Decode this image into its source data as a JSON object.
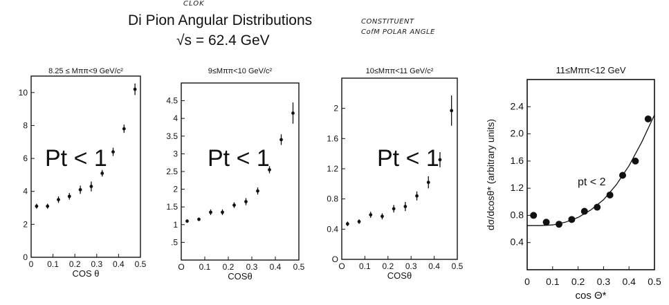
{
  "header": {
    "title": "Di Pion Angular Distributions",
    "energy": "√s = 62.4 GeV",
    "handwritten_top": "CLOK",
    "handwritten_right_line1": "CONSTITUENT",
    "handwritten_right_line2": "CofM POLAR ANGLE"
  },
  "chart_data": [
    {
      "type": "scatter",
      "title": "8.25 ≤ Mππ<9 GeV/c²",
      "annotation": "Pt < 1",
      "xlabel": "COS θ",
      "ylabel": "",
      "xlim": [
        0,
        0.5
      ],
      "ylim": [
        0,
        11
      ],
      "xticks": [
        0,
        0.1,
        0.2,
        0.3,
        0.4,
        0.5
      ],
      "xtick_labels": [
        "0",
        "0.1",
        "0.2",
        "0.3",
        "0.4",
        "0.5"
      ],
      "yticks": [
        0,
        2,
        4,
        6,
        8,
        10
      ],
      "ytick_labels": [
        "0",
        "2",
        "4",
        "6",
        "8",
        "10"
      ],
      "series": [
        {
          "x": [
            0.025,
            0.075,
            0.125,
            0.175,
            0.225,
            0.275,
            0.325,
            0.375,
            0.425,
            0.475
          ],
          "y": [
            3.1,
            3.1,
            3.5,
            3.7,
            4.1,
            4.3,
            5.1,
            6.4,
            7.8,
            10.2
          ],
          "yerr": [
            0.15,
            0.15,
            0.2,
            0.2,
            0.25,
            0.3,
            0.2,
            0.25,
            0.25,
            0.35
          ]
        }
      ]
    },
    {
      "type": "scatter",
      "title": "9≤Mππ<10 GeV/c²",
      "annotation": "Pt < 1",
      "xlabel": "COSθ",
      "ylabel": "",
      "xlim": [
        0,
        0.5
      ],
      "ylim": [
        0,
        5
      ],
      "xticks": [
        0,
        0.1,
        0.2,
        0.3,
        0.4,
        0.5
      ],
      "xtick_labels": [
        "O",
        "0.1",
        "0.2",
        "0.3",
        "0.4",
        "0.5"
      ],
      "yticks": [
        0.5,
        1,
        1.5,
        2,
        2.5,
        3,
        3.5,
        4,
        4.5
      ],
      "ytick_labels": [
        ".5",
        "1",
        "1.5",
        "2",
        "2.5",
        "3",
        "3.5",
        "4",
        "4.5"
      ],
      "series": [
        {
          "x": [
            0.025,
            0.075,
            0.125,
            0.175,
            0.225,
            0.275,
            0.325,
            0.375,
            0.425,
            0.475
          ],
          "y": [
            1.1,
            1.15,
            1.35,
            1.35,
            1.55,
            1.65,
            1.95,
            2.55,
            3.4,
            4.15
          ],
          "yerr": [
            0.05,
            0.05,
            0.08,
            0.08,
            0.08,
            0.1,
            0.1,
            0.1,
            0.15,
            0.3
          ]
        }
      ]
    },
    {
      "type": "scatter",
      "title": "10≤Mππ<11 GeV/c²",
      "annotation": "Pt < 1",
      "xlabel": "COSθ",
      "ylabel": "",
      "xlim": [
        0,
        0.5
      ],
      "ylim": [
        0,
        2.4
      ],
      "xticks": [
        0,
        0.1,
        0.2,
        0.3,
        0.4,
        0.5
      ],
      "xtick_labels": [
        "O",
        "0.1",
        "0.2",
        "0.3",
        "0.4",
        "0.5"
      ],
      "yticks": [
        0,
        0.4,
        0.8,
        1.2,
        1.6,
        2
      ],
      "ytick_labels": [
        "O",
        "0.4",
        "0.8",
        "1.2",
        "1.6",
        "2"
      ],
      "series": [
        {
          "x": [
            0.025,
            0.075,
            0.125,
            0.175,
            0.225,
            0.275,
            0.325,
            0.375,
            0.425,
            0.475
          ],
          "y": [
            0.47,
            0.5,
            0.59,
            0.57,
            0.67,
            0.7,
            0.84,
            1.02,
            1.32,
            1.97
          ],
          "yerr": [
            0.03,
            0.03,
            0.04,
            0.04,
            0.05,
            0.06,
            0.06,
            0.08,
            0.1,
            0.2
          ]
        }
      ]
    },
    {
      "type": "scatter",
      "title": "11≤Mππ<12 GeV",
      "annotation": "pt < 2",
      "xlabel": "cos Θ*",
      "ylabel": "dσ/dcosθ* (arbitrary units)",
      "xlim": [
        0,
        0.5
      ],
      "ylim": [
        0,
        2.8
      ],
      "xticks": [
        0,
        0.1,
        0.2,
        0.3,
        0.4,
        0.5
      ],
      "xtick_labels": [
        "0",
        "0.1",
        "0.2",
        "0.3",
        "0.4",
        "0.5"
      ],
      "yticks": [
        0.4,
        0.8,
        1.2,
        1.6,
        2.0,
        2.4
      ],
      "ytick_labels": [
        "0.4",
        "0.8",
        "1.2",
        "1.6",
        "2.0",
        "2.4"
      ],
      "series": [
        {
          "x": [
            0.025,
            0.075,
            0.125,
            0.175,
            0.225,
            0.275,
            0.325,
            0.375,
            0.425,
            0.475
          ],
          "y": [
            0.8,
            0.7,
            0.67,
            0.74,
            0.86,
            0.92,
            1.1,
            1.39,
            1.6,
            2.22
          ],
          "yerr": [
            0,
            0,
            0,
            0,
            0,
            0,
            0.04,
            0.04,
            0.04,
            0
          ]
        }
      ],
      "curve": {
        "x": [
          0,
          0.05,
          0.1,
          0.15,
          0.2,
          0.25,
          0.3,
          0.35,
          0.4,
          0.45,
          0.5
        ],
        "y": [
          0.65,
          0.65,
          0.66,
          0.7,
          0.77,
          0.88,
          1.03,
          1.25,
          1.53,
          1.88,
          2.28
        ]
      }
    }
  ]
}
